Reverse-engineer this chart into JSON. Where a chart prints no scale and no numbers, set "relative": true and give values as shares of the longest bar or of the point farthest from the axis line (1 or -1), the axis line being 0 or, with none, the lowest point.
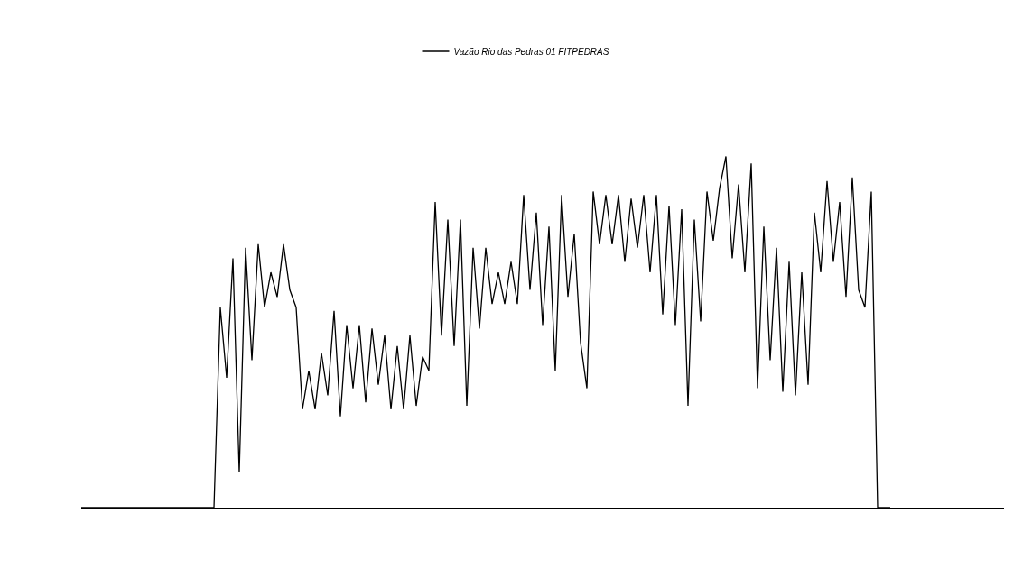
{
  "chart_data": {
    "type": "line",
    "relative": true,
    "legend": "top",
    "categories": [
      null,
      null,
      null,
      null,
      null,
      null,
      null,
      null,
      null,
      null,
      null,
      null,
      null,
      null,
      null,
      null,
      null,
      null,
      null,
      null,
      null,
      null,
      null,
      null,
      null,
      null,
      null,
      null,
      null,
      null,
      null,
      null,
      null,
      null,
      null,
      null,
      null,
      null,
      null,
      null,
      null,
      null,
      null,
      null,
      null,
      null,
      null,
      null,
      null,
      null,
      null,
      null,
      null,
      null,
      null,
      null,
      null,
      null,
      null,
      null,
      null,
      null,
      null,
      null,
      null,
      null,
      null,
      null,
      null,
      null,
      null,
      null,
      null,
      null,
      null,
      null,
      null,
      null,
      null,
      null,
      null,
      null,
      null,
      null,
      null,
      null,
      null,
      null,
      null,
      null,
      null,
      null,
      null,
      null,
      null,
      null,
      null,
      null,
      null,
      null,
      null,
      null,
      null,
      null,
      null,
      null,
      null,
      null,
      null,
      null,
      null,
      null,
      null,
      null,
      null,
      null,
      null,
      null,
      null,
      null,
      null,
      null,
      null,
      null,
      null,
      null,
      null,
      null,
      null,
      null,
      null,
      null,
      null,
      null,
      null,
      null,
      null,
      null,
      null,
      null,
      null,
      null,
      null,
      null,
      null,
      null,
      null
    ],
    "series": [
      {
        "name": "Vazão Rio das Pedras 01 FITPEDRAS",
        "color": "#000000",
        "values": [
          0,
          0,
          0,
          0,
          0,
          0,
          0,
          0,
          0,
          0,
          0,
          0,
          0,
          0,
          0,
          0,
          0,
          0,
          0,
          0,
          0,
          0,
          0.57,
          0.37,
          0.71,
          0.1,
          0.74,
          0.42,
          0.75,
          0.57,
          0.67,
          0.6,
          0.75,
          0.62,
          0.57,
          0.28,
          0.39,
          0.28,
          0.44,
          0.32,
          0.56,
          0.26,
          0.52,
          0.34,
          0.52,
          0.3,
          0.51,
          0.35,
          0.49,
          0.28,
          0.46,
          0.28,
          0.49,
          0.29,
          0.43,
          0.39,
          0.87,
          0.49,
          0.82,
          0.46,
          0.82,
          0.29,
          0.74,
          0.51,
          0.74,
          0.58,
          0.67,
          0.58,
          0.7,
          0.58,
          0.89,
          0.62,
          0.84,
          0.52,
          0.8,
          0.39,
          0.89,
          0.6,
          0.78,
          0.47,
          0.34,
          0.9,
          0.75,
          0.89,
          0.75,
          0.89,
          0.7,
          0.88,
          0.74,
          0.89,
          0.67,
          0.89,
          0.55,
          0.86,
          0.52,
          0.85,
          0.29,
          0.82,
          0.53,
          0.9,
          0.76,
          0.91,
          1.0,
          0.71,
          0.92,
          0.67,
          0.98,
          0.34,
          0.8,
          0.42,
          0.74,
          0.33,
          0.7,
          0.32,
          0.67,
          0.35,
          0.84,
          0.67,
          0.93,
          0.7,
          0.87,
          0.6,
          0.94,
          0.62,
          0.57,
          0.9,
          0,
          0,
          0,
          null,
          null,
          null,
          null,
          null,
          null,
          null,
          null,
          null,
          null,
          null,
          null,
          null,
          null,
          null,
          null,
          null,
          null
        ]
      }
    ]
  }
}
